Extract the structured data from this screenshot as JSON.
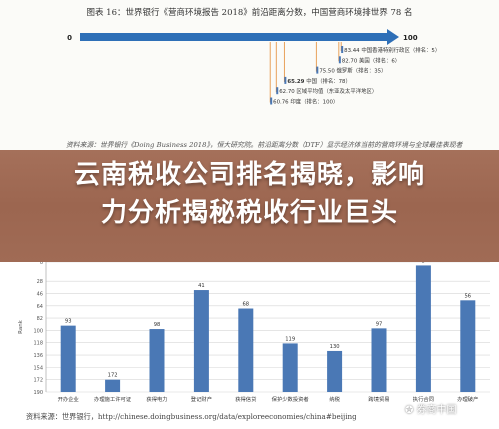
{
  "caption": "图表 16：世界银行《营商环境报告 2018》前沿距离分数，中国营商环境排世界 78 名",
  "note": "资料来源：世界银行《Doing Business 2018》，恒大研究院。前沿距离分数（DTF）显示经济体当前的营商环境与全球最佳表现者之间的距离；分数越高越接近前沿",
  "headline_line1": "云南税收公司排名揭晓，影响",
  "headline_line2": "力分析揭秘税收行业巨头",
  "source": "资料来源：世界银行，http://chinese.doingbusiness.org/data/exploreeconomies/china#beijing，恒大研究院",
  "watermark": "券商中国",
  "chart_data": [
    {
      "type": "bar",
      "title": "图表 16：世界银行《营商环境报告 2018》前沿距离分数，中国营商环境排世界 78 名",
      "xlim": [
        0,
        100
      ],
      "axis_start_label": "0",
      "axis_end_label": "100",
      "items": [
        {
          "value": 83.44,
          "label": "83.44",
          "name": "中国香港特别行政区（排名：5）"
        },
        {
          "value": 82.7,
          "label": "82.70",
          "name": "美国（排名：6）"
        },
        {
          "value": 75.5,
          "label": "75.50",
          "name": "俄罗斯（排名：35）"
        },
        {
          "value": 65.29,
          "label": "65.29",
          "name": "中国（排名：78）"
        },
        {
          "value": 62.7,
          "label": "62.70",
          "name": "区域平均值（东亚及太平洋地区）"
        },
        {
          "value": 60.76,
          "label": "60.76",
          "name": "印度（排名：100）"
        }
      ],
      "colors": {
        "arrow": "#2e6fb7",
        "bar": "#4a78b5"
      }
    },
    {
      "type": "bar",
      "ylabel": "Rank",
      "ylim_inverted": [
        0,
        190
      ],
      "y_ticks": [
        0,
        28,
        46,
        64,
        82,
        100,
        118,
        136,
        154,
        172,
        190
      ],
      "categories": [
        "开办企业",
        "办理施工许可证",
        "获得电力",
        "登记财产",
        "获得信贷",
        "保护少数投资者",
        "纳税",
        "跨境贸易",
        "执行合同",
        "办理破产"
      ],
      "values": [
        93,
        172,
        98,
        41,
        68,
        119,
        130,
        97,
        5,
        56
      ],
      "colors": {
        "bar": "#4a78b5"
      }
    }
  ]
}
